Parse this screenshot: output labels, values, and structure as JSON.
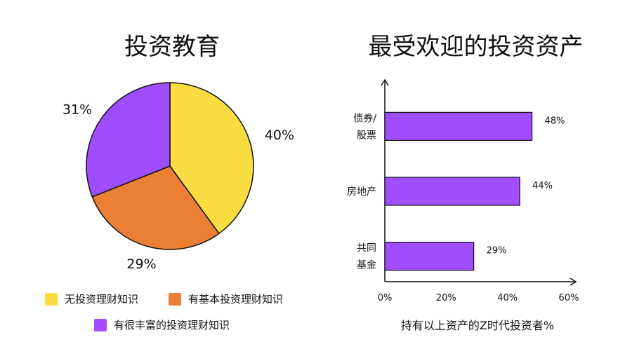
{
  "chart_data": [
    {
      "type": "pie",
      "title": "投资教育",
      "slices": [
        {
          "label": "无投资理财知识",
          "value": 40,
          "color": "#F9DC3F",
          "display": "40%"
        },
        {
          "label": "有基本投资理财知识",
          "value": 29,
          "color": "#EB8034",
          "display": "29%"
        },
        {
          "label": "有很丰富的投资理财知识",
          "value": 31,
          "color": "#A04CFF",
          "display": "31%"
        }
      ]
    },
    {
      "type": "bar",
      "orientation": "horizontal",
      "title": "最受欢迎的投资资产",
      "categories": [
        [
          "债券/",
          "股票"
        ],
        [
          "房地产"
        ],
        [
          "共同",
          "基金"
        ]
      ],
      "values": [
        48,
        44,
        29
      ],
      "value_labels": [
        "48%",
        "44%",
        "29%"
      ],
      "xlabel": "持有以上资产的Z时代投资者%",
      "xlim": [
        0,
        60
      ],
      "xticks": [
        0,
        20,
        40,
        60
      ],
      "xtick_labels": [
        "0%",
        "20%",
        "40%",
        "60%"
      ],
      "color": "#A04CFF"
    }
  ]
}
